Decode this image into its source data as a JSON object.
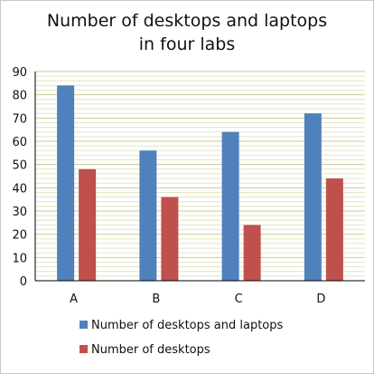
{
  "chart_data": {
    "type": "bar",
    "title": [
      "Number of desktops and laptops",
      "in four labs"
    ],
    "categories": [
      "A",
      "B",
      "C",
      "D"
    ],
    "ylim": [
      0,
      90
    ],
    "yticks": [
      0,
      10,
      20,
      30,
      40,
      50,
      60,
      70,
      80,
      90
    ],
    "grid": true,
    "legend_position": "bottom",
    "series": [
      {
        "name": "Number of desktops and laptops",
        "values": [
          84,
          56,
          64,
          72
        ],
        "color": "#4f81bd"
      },
      {
        "name": "Number of desktops",
        "values": [
          48,
          36,
          24,
          44
        ],
        "color": "#c0504d"
      }
    ],
    "colors": {
      "grid_major": "#c8c898",
      "grid_minor": "#e4e4c4",
      "axis": "#000000"
    }
  }
}
